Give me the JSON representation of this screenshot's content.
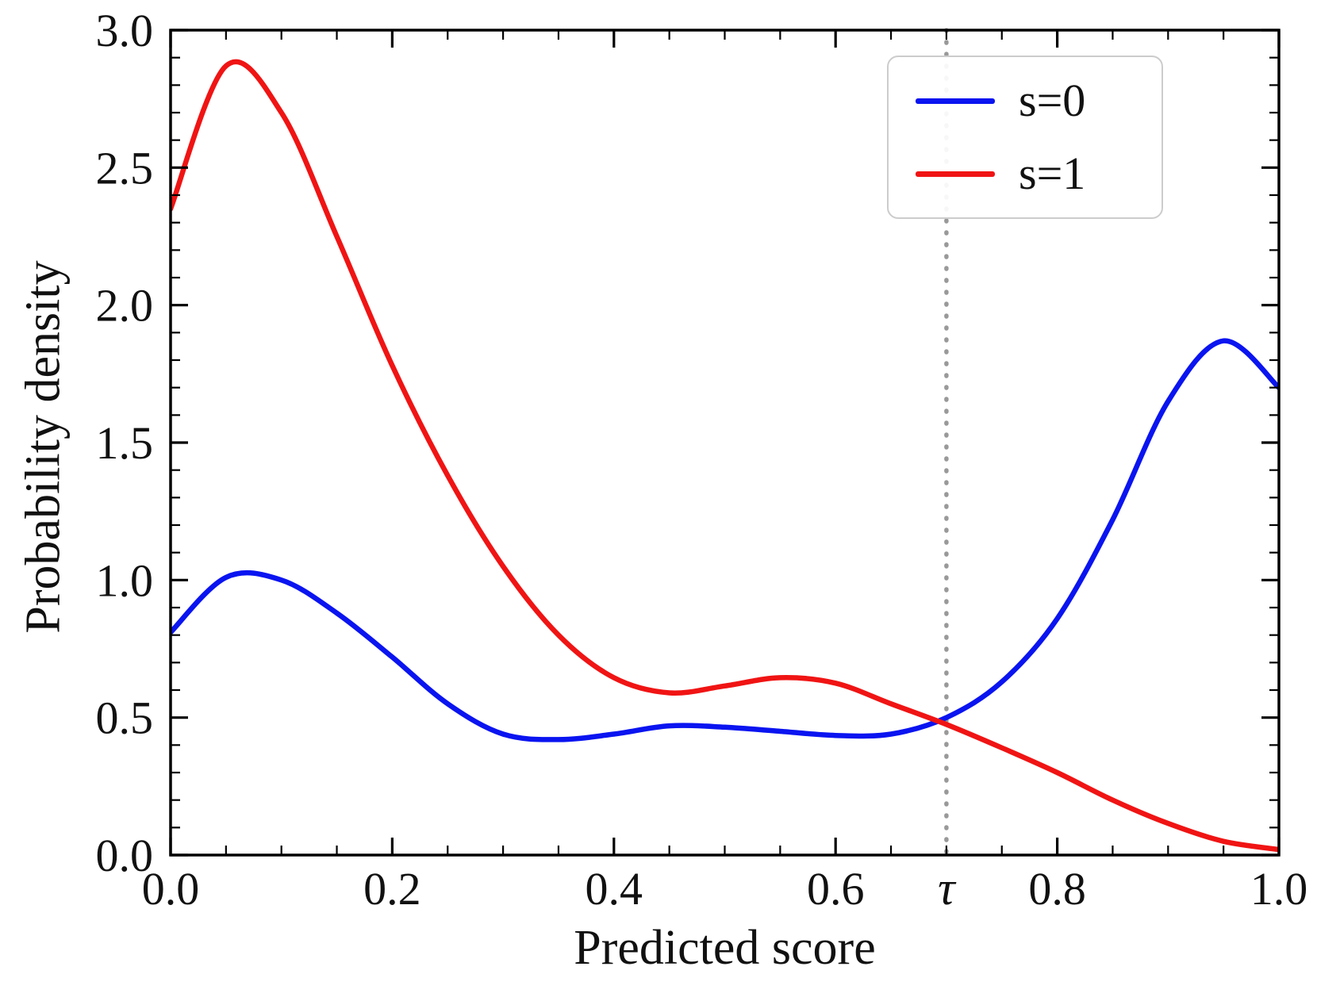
{
  "chart_data": {
    "type": "line",
    "title": "",
    "xlabel": "Predicted score",
    "ylabel": "Probability density",
    "xlim": [
      0,
      1
    ],
    "ylim": [
      0,
      3
    ],
    "grid": false,
    "legend_position": "upper right",
    "xticks": {
      "major": [
        0,
        0.2,
        0.4,
        0.6,
        0.8,
        1.0
      ],
      "labels": [
        "0.0",
        "0.2",
        "0.4",
        "0.6",
        "0.8",
        "1.0"
      ],
      "minor_step": 0.05
    },
    "yticks": {
      "major": [
        0,
        0.5,
        1.0,
        1.5,
        2.0,
        2.5,
        3.0
      ],
      "labels": [
        "0.0",
        "0.5",
        "1.0",
        "1.5",
        "2.0",
        "2.5",
        "3.0"
      ],
      "minor_step": 0.1
    },
    "threshold": {
      "x": 0.7,
      "label": "τ",
      "color": "#999999",
      "style": "dotted"
    },
    "x": [
      0,
      0.05,
      0.1,
      0.15,
      0.2,
      0.25,
      0.3,
      0.35,
      0.4,
      0.45,
      0.5,
      0.55,
      0.6,
      0.65,
      0.7,
      0.75,
      0.8,
      0.85,
      0.9,
      0.95,
      1.0
    ],
    "series": [
      {
        "name": "s=0",
        "color": "#0a14f0",
        "values": [
          0.81,
          1.01,
          1.0,
          0.88,
          0.72,
          0.55,
          0.44,
          0.42,
          0.44,
          0.47,
          0.465,
          0.45,
          0.435,
          0.44,
          0.5,
          0.63,
          0.86,
          1.22,
          1.65,
          1.87,
          1.7
        ]
      },
      {
        "name": "s=1",
        "color": "#f01414",
        "values": [
          2.35,
          2.87,
          2.7,
          2.25,
          1.78,
          1.38,
          1.05,
          0.8,
          0.645,
          0.59,
          0.615,
          0.645,
          0.625,
          0.55,
          0.475,
          0.39,
          0.3,
          0.2,
          0.115,
          0.05,
          0.02
        ]
      }
    ]
  }
}
